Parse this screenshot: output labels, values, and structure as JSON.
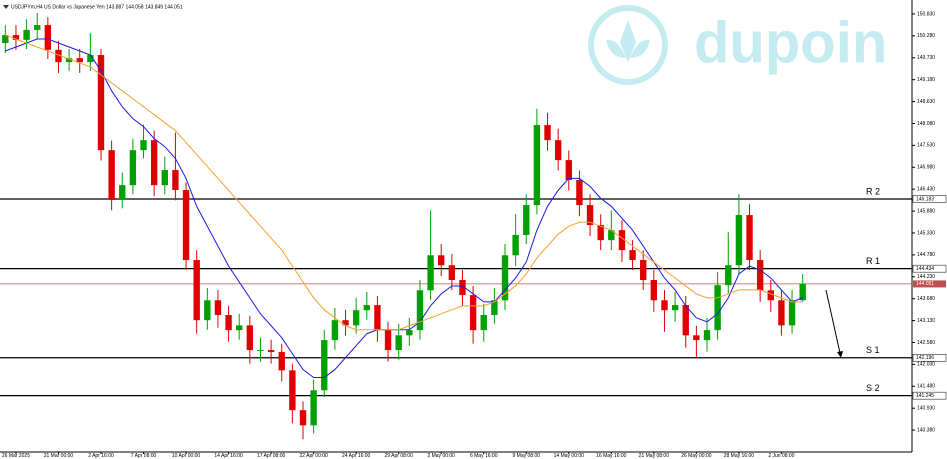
{
  "chart_data": {
    "type": "candlestick",
    "header": "USDJPYm,H4  US Dollar vs Japanese Yen  143.887 144.058 143.849 144.051",
    "watermark": "dupoin",
    "categories": [
      null,
      "26 Mar 2025",
      null,
      null,
      null,
      "31 Mar 00:00",
      null,
      null,
      null,
      "2 Apr 16:00",
      null,
      null,
      null,
      "7 Apr 08:00",
      null,
      null,
      null,
      "10 Apr 00:00",
      null,
      null,
      null,
      "14 Apr 16:00",
      null,
      null,
      null,
      "17 Apr 08:00",
      null,
      null,
      null,
      "22 Apr 00:00",
      null,
      null,
      null,
      "24 Apr 16:00",
      null,
      null,
      null,
      "29 Apr 08:00",
      null,
      null,
      null,
      "2 May 00:00",
      null,
      null,
      null,
      "6 May 16:00",
      null,
      null,
      null,
      "9 May 08:00",
      null,
      null,
      null,
      "14 May 00:00",
      null,
      null,
      null,
      "16 May 16:00",
      null,
      null,
      null,
      "21 May 08:00",
      null,
      null,
      null,
      "26 May 00:00",
      null,
      null,
      null,
      "28 May 16:00",
      null,
      null,
      null,
      "2 Jun 08:00",
      null,
      null
    ],
    "open": [
      150.1,
      150.3,
      150.18,
      150.43,
      150.55,
      149.93,
      149.62,
      149.72,
      149.62,
      149.8,
      147.41,
      146.16,
      146.53,
      147.41,
      147.66,
      146.53,
      146.91,
      146.41,
      144.65,
      143.14,
      143.64,
      143.27,
      142.89,
      143.01,
      142.39,
      142.39,
      142.34,
      141.88,
      140.88,
      140.5,
      141.38,
      142.64,
      143.14,
      143.01,
      143.39,
      143.52,
      142.89,
      142.39,
      142.76,
      142.89,
      143.89,
      144.77,
      144.52,
      144.15,
      143.77,
      142.89,
      143.27,
      143.64,
      144.77,
      145.28,
      146.03,
      148.04,
      147.66,
      147.16,
      146.66,
      146.03,
      145.53,
      145.15,
      145.4,
      144.9,
      144.65,
      144.15,
      143.64,
      143.39,
      143.52,
      142.76,
      142.64,
      142.89,
      144.02,
      144.52,
      145.78,
      144.65,
      143.89,
      143.64,
      143.01,
      143.64
    ],
    "high": [
      150.55,
      150.55,
      150.7,
      150.85,
      150.75,
      150.15,
      149.95,
      149.95,
      150.35,
      149.95,
      147.65,
      146.85,
      147.7,
      148.05,
      147.9,
      147.25,
      147.85,
      146.6,
      144.9,
      143.95,
      143.9,
      143.5,
      143.3,
      143.25,
      142.7,
      142.65,
      142.55,
      142.05,
      141.1,
      141.65,
      142.9,
      143.45,
      143.4,
      143.7,
      143.85,
      143.75,
      143.1,
      143.05,
      143.2,
      144.15,
      145.9,
      145.05,
      144.8,
      144.4,
      144.0,
      143.55,
      143.95,
      145.05,
      145.8,
      146.3,
      148.45,
      148.35,
      147.95,
      147.4,
      146.9,
      146.3,
      145.8,
      145.9,
      145.65,
      145.15,
      144.9,
      144.4,
      143.9,
      143.85,
      143.75,
      143.0,
      143.2,
      144.35,
      145.35,
      146.3,
      146.05,
      144.9,
      144.15,
      143.9,
      143.9,
      144.3
    ],
    "low": [
      149.85,
      149.93,
      149.95,
      150.2,
      149.7,
      149.35,
      149.4,
      149.35,
      149.4,
      147.15,
      145.9,
      145.95,
      146.3,
      147.2,
      146.25,
      146.3,
      146.15,
      144.4,
      142.8,
      142.9,
      142.95,
      142.6,
      142.65,
      142.05,
      142.1,
      142.05,
      141.6,
      140.55,
      140.15,
      140.3,
      141.2,
      142.4,
      142.75,
      142.8,
      143.15,
      142.6,
      142.1,
      142.15,
      142.5,
      142.65,
      143.65,
      144.25,
      143.9,
      143.5,
      142.55,
      142.6,
      143.05,
      143.4,
      144.5,
      145.05,
      145.8,
      147.4,
      146.9,
      146.4,
      145.75,
      145.25,
      144.9,
      144.9,
      144.6,
      144.4,
      143.9,
      143.35,
      142.85,
      143.1,
      142.45,
      142.2,
      142.35,
      142.65,
      143.8,
      144.3,
      144.4,
      143.6,
      143.35,
      142.75,
      142.8,
      143.6
    ],
    "close": [
      150.3,
      150.18,
      150.43,
      150.55,
      149.93,
      149.62,
      149.72,
      149.62,
      149.8,
      147.41,
      146.16,
      146.53,
      147.41,
      147.66,
      146.53,
      146.91,
      146.41,
      144.65,
      143.14,
      143.64,
      143.27,
      142.89,
      143.01,
      142.39,
      142.39,
      142.34,
      141.88,
      140.88,
      140.5,
      141.38,
      142.64,
      143.14,
      143.01,
      143.39,
      143.52,
      142.89,
      142.39,
      142.76,
      142.89,
      143.89,
      144.77,
      144.52,
      144.15,
      143.77,
      142.89,
      143.27,
      143.64,
      144.77,
      145.28,
      146.03,
      148.04,
      147.66,
      147.16,
      146.66,
      146.03,
      145.53,
      145.15,
      145.4,
      144.9,
      144.65,
      144.15,
      143.64,
      143.39,
      143.52,
      142.76,
      142.64,
      142.89,
      144.02,
      144.52,
      145.78,
      144.65,
      143.89,
      143.64,
      143.01,
      143.64,
      144.05
    ],
    "up_color": "#00a000",
    "down_color": "#e00000",
    "ma": [
      {
        "color": "#1c1ce0",
        "values": [
          149.9,
          150.0,
          150.1,
          150.2,
          150.2,
          150.1,
          150.0,
          149.9,
          149.8,
          149.4,
          148.9,
          148.5,
          148.2,
          148.0,
          147.7,
          147.5,
          147.2,
          146.7,
          146.0,
          145.5,
          145.0,
          144.5,
          144.1,
          143.7,
          143.3,
          143.0,
          142.7,
          142.3,
          141.9,
          141.7,
          141.7,
          141.9,
          142.2,
          142.5,
          142.8,
          142.9,
          142.9,
          142.9,
          142.9,
          143.1,
          143.5,
          143.8,
          144.0,
          144.0,
          143.8,
          143.6,
          143.6,
          143.9,
          144.2,
          144.6,
          145.4,
          146.0,
          146.4,
          146.7,
          146.7,
          146.5,
          146.2,
          146.0,
          145.7,
          145.4,
          145.0,
          144.6,
          144.2,
          143.9,
          143.5,
          143.2,
          143.1,
          143.3,
          143.7,
          144.3,
          144.5,
          144.4,
          144.2,
          143.9,
          143.6,
          143.7
        ]
      },
      {
        "color": "#f5a030",
        "values": [
          150.3,
          150.2,
          150.1,
          150.0,
          149.9,
          149.8,
          149.7,
          149.6,
          149.5,
          149.3,
          149.1,
          148.9,
          148.7,
          148.5,
          148.3,
          148.1,
          147.9,
          147.6,
          147.3,
          147.0,
          146.7,
          146.4,
          146.1,
          145.8,
          145.5,
          145.2,
          144.9,
          144.5,
          144.1,
          143.7,
          143.4,
          143.2,
          143.0,
          142.9,
          142.9,
          142.9,
          142.9,
          142.9,
          143.0,
          143.1,
          143.2,
          143.3,
          143.4,
          143.5,
          143.5,
          143.5,
          143.6,
          143.8,
          144.0,
          144.3,
          144.7,
          145.0,
          145.3,
          145.5,
          145.6,
          145.6,
          145.5,
          145.4,
          145.2,
          145.0,
          144.8,
          144.6,
          144.4,
          144.2,
          144.0,
          143.8,
          143.7,
          143.7,
          143.8,
          143.9,
          143.9,
          143.9,
          143.8,
          143.7,
          143.6,
          143.6
        ]
      }
    ],
    "levels": [
      {
        "label": "R 2",
        "value": 146.183
      },
      {
        "label": "R 1",
        "value": 144.434
      },
      {
        "label": "S 1",
        "value": 142.196
      },
      {
        "label": "S 2",
        "value": 141.245
      }
    ],
    "level_color": "#000000",
    "price_line": 144.051,
    "price_color": "#c0504d",
    "ylim": [
      139.83,
      151.08
    ],
    "yticks": [
      {
        "value": 150.83,
        "label": "150.830"
      },
      {
        "value": 150.28,
        "label": "150.280"
      },
      {
        "value": 149.73,
        "label": "149.730"
      },
      {
        "value": 149.18,
        "label": "149.180"
      },
      {
        "value": 148.63,
        "label": "148.630"
      },
      {
        "value": 148.08,
        "label": "148.080"
      },
      {
        "value": 147.53,
        "label": "147.530"
      },
      {
        "value": 146.98,
        "label": "146.980"
      },
      {
        "value": 146.43,
        "label": "146.430"
      },
      {
        "value": 145.88,
        "label": "145.880"
      },
      {
        "value": 145.33,
        "label": "145.330"
      },
      {
        "value": 144.78,
        "label": "144.780"
      },
      {
        "value": 144.23,
        "label": "144.230"
      },
      {
        "value": 143.68,
        "label": "143.680"
      },
      {
        "value": 143.13,
        "label": "143.130"
      },
      {
        "value": 142.58,
        "label": "142.580"
      },
      {
        "value": 142.03,
        "label": "142.030"
      },
      {
        "value": 141.48,
        "label": "141.480"
      },
      {
        "value": 140.93,
        "label": "140.930"
      },
      {
        "value": 140.38,
        "label": "140.380"
      }
    ]
  }
}
